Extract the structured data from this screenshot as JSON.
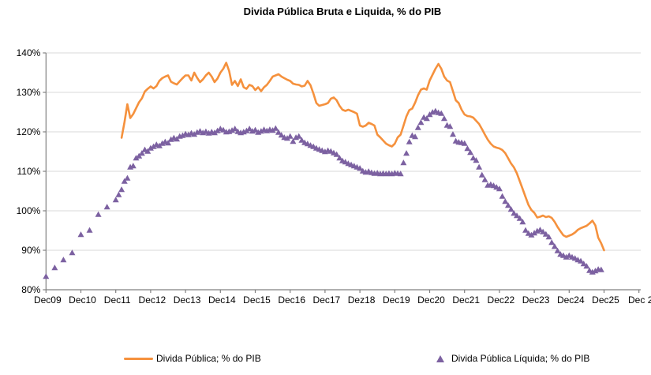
{
  "page": {
    "background": "#FFFFFF"
  },
  "chart_data": {
    "type": "line",
    "title": "Divida Pública Bruta e Liquida, % do PIB",
    "x_unit": "month_index = months since Dec 2009 (0 = Dec09)",
    "x_axis": {
      "tick_month_indices": [
        0,
        12,
        24,
        36,
        48,
        60,
        72,
        84,
        96,
        108,
        120,
        132,
        144,
        156,
        168,
        180,
        192,
        204
      ],
      "tick_labels": [
        "Dec09",
        "Dec10",
        "Dec11",
        "Dec12",
        "Dec13",
        "Dec14",
        "Dec15",
        "Dec16",
        "Dec17",
        "Dez18",
        "Dec19",
        "Dec20",
        "Dec21",
        "Dec22",
        "Dec23",
        "Dec24",
        "Dec25",
        "Dec 2"
      ]
    },
    "y_axis": {
      "min": 80,
      "max": 140,
      "step": 10,
      "tick_labels": [
        "80%",
        "90%",
        "100%",
        "110%",
        "120%",
        "130%",
        "140%"
      ],
      "grid": true
    },
    "grid_color": "#D9D9D9",
    "axis_color": "#808080",
    "text_color": "#000000",
    "legend_position": "bottom",
    "series": [
      {
        "name": "Divida Pública; % do PIB",
        "color": "#F5913D",
        "style": "line",
        "monthly": {
          "start_month_index": 26,
          "values": [
            118.5,
            122.5,
            127.0,
            123.5,
            124.5,
            126.0,
            127.5,
            128.5,
            130.2,
            130.9,
            131.5,
            131.0,
            131.6,
            132.9,
            133.6,
            134.0,
            134.3,
            132.7,
            132.3,
            132.0,
            132.8,
            133.6,
            134.3,
            134.3,
            133.0,
            135.0,
            133.7,
            132.6,
            133.3,
            134.3,
            135.0,
            134.0,
            132.6,
            133.5,
            135.0,
            136.0,
            137.5,
            135.4,
            131.9,
            132.9,
            131.6,
            133.3,
            131.3,
            130.9,
            131.9,
            131.6,
            130.6,
            131.3,
            130.3,
            131.3,
            131.9,
            132.9,
            134.0,
            134.3,
            134.6,
            134.0,
            133.6,
            133.2,
            132.9,
            132.2,
            132.0,
            131.9,
            131.5,
            131.7,
            132.9,
            131.8,
            129.7,
            127.3,
            126.6,
            126.8,
            127.0,
            127.3,
            128.4,
            128.7,
            128.0,
            126.6,
            125.6,
            125.3,
            125.6,
            125.3,
            125.0,
            124.6,
            121.6,
            121.3,
            121.6,
            122.3,
            122.0,
            121.6,
            119.3,
            118.6,
            117.8,
            117.0,
            116.6,
            116.3,
            117.0,
            118.6,
            119.3,
            121.6,
            123.9,
            125.5,
            125.9,
            127.4,
            129.3,
            130.7,
            131.0,
            130.7,
            133.0,
            134.5,
            136.0,
            137.2,
            136.0,
            134.0,
            133.0,
            132.6,
            130.3,
            128.0,
            127.3,
            125.6,
            124.4,
            124.0,
            123.9,
            123.6,
            122.8,
            122.0,
            120.7,
            119.3,
            118.0,
            117.0,
            116.3,
            116.0,
            115.8,
            115.4,
            114.6,
            113.3,
            112.0,
            111.0,
            109.5,
            107.5,
            105.5,
            103.5,
            101.5,
            100.2,
            99.5,
            98.3,
            98.5,
            98.8,
            98.4,
            98.6,
            98.2,
            97.2,
            95.9,
            94.8,
            93.8,
            93.4,
            93.7,
            94.0,
            94.5,
            95.2,
            95.6,
            95.9,
            96.2,
            96.8,
            97.5,
            96.3,
            93.2,
            91.8,
            90.0
          ]
        }
      },
      {
        "name": "Divida Pública Líquida; % do PIB",
        "color": "#7C61A1",
        "style": "triangle_markers",
        "quarterly_head": {
          "month_indices": [
            0,
            3,
            6,
            9,
            12,
            15,
            18,
            21
          ],
          "values": [
            83.3,
            85.5,
            87.5,
            89.3,
            93.9,
            95.0,
            99.0,
            100.9
          ]
        },
        "monthly": {
          "start_month_index": 24,
          "values": [
            102.7,
            104.0,
            105.3,
            107.4,
            108.2,
            111.0,
            111.3,
            113.3,
            113.8,
            114.5,
            115.4,
            115.0,
            115.8,
            116.2,
            116.7,
            116.4,
            117.0,
            117.4,
            117.1,
            118.0,
            118.4,
            118.1,
            118.8,
            119.0,
            119.4,
            119.2,
            119.6,
            119.3,
            119.8,
            120.1,
            119.7,
            120.0,
            119.6,
            119.9,
            119.7,
            120.2,
            120.7,
            120.4,
            119.9,
            120.0,
            120.3,
            120.7,
            120.0,
            119.7,
            119.9,
            120.2,
            120.7,
            120.1,
            120.4,
            119.8,
            120.1,
            120.5,
            120.2,
            120.5,
            120.3,
            120.8,
            119.8,
            119.1,
            118.5,
            118.3,
            118.8,
            117.5,
            118.5,
            118.8,
            117.8,
            117.2,
            116.9,
            116.5,
            116.2,
            115.8,
            115.5,
            115.2,
            114.9,
            115.2,
            115.0,
            114.6,
            114.2,
            113.3,
            112.6,
            112.3,
            111.9,
            111.6,
            111.3,
            111.0,
            110.7,
            110.0,
            109.7,
            109.9,
            109.6,
            109.4,
            109.5,
            109.3,
            109.4,
            109.3,
            109.4,
            109.3,
            109.5,
            109.4,
            109.3,
            112.1,
            114.5,
            117.4,
            119.0,
            118.7,
            121.0,
            122.3,
            123.6,
            123.3,
            124.3,
            124.9,
            125.2,
            124.8,
            124.6,
            123.3,
            121.6,
            121.3,
            119.3,
            117.6,
            117.3,
            117.2,
            117.0,
            115.7,
            114.7,
            113.3,
            112.7,
            111.0,
            109.0,
            107.8,
            106.4,
            106.6,
            106.3,
            105.9,
            105.5,
            103.6,
            102.3,
            101.3,
            100.3,
            99.3,
            98.7,
            98.0,
            97.1,
            95.0,
            94.2,
            93.8,
            94.3,
            94.8,
            95.1,
            94.6,
            94.0,
            93.3,
            91.9,
            90.9,
            89.8,
            88.9,
            88.6,
            88.2,
            88.6,
            88.2,
            87.9,
            87.5,
            87.2,
            86.5,
            85.9,
            84.8,
            84.4,
            84.7,
            85.1,
            85.0
          ]
        }
      }
    ]
  }
}
